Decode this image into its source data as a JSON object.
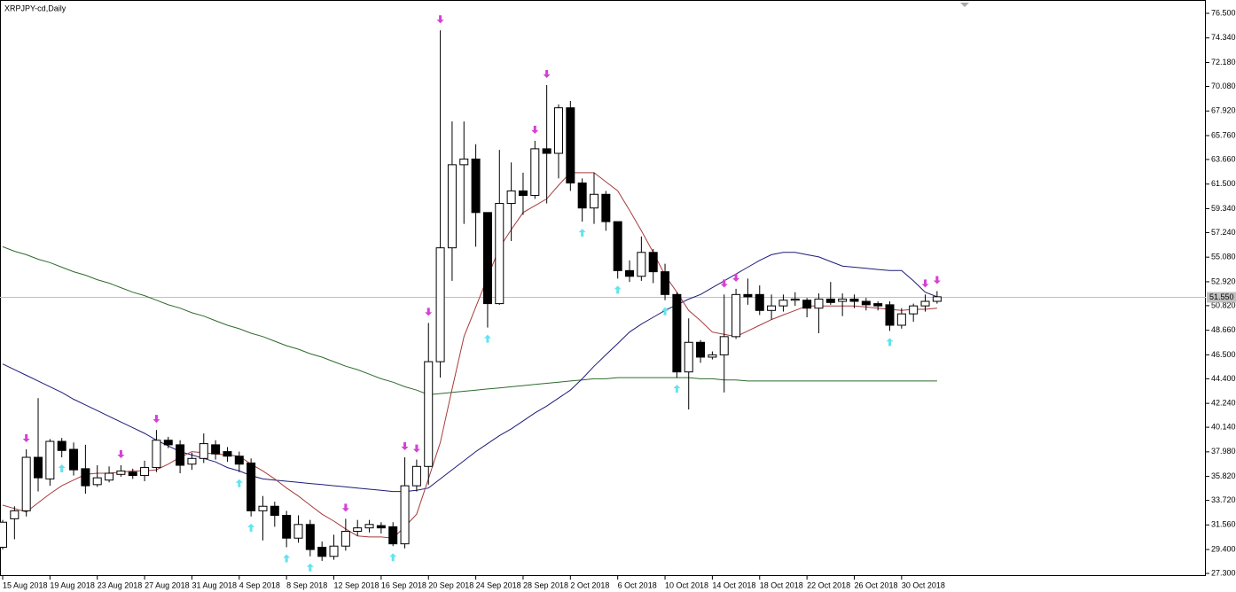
{
  "chart_data": {
    "type": "candlestick",
    "title": "XRPJPY-cd,Daily",
    "categories": [
      "15 Aug 2018",
      null,
      null,
      null,
      "19 Aug 2018",
      null,
      null,
      null,
      "23 Aug 2018",
      null,
      null,
      null,
      "27 Aug 2018",
      null,
      null,
      null,
      "31 Aug 2018",
      null,
      null,
      null,
      "4 Sep 2018",
      null,
      null,
      null,
      "8 Sep 2018",
      null,
      null,
      null,
      "12 Sep 2018",
      null,
      null,
      null,
      "16 Sep 2018",
      null,
      null,
      null,
      "20 Sep 2018",
      null,
      null,
      null,
      "24 Sep 2018",
      null,
      null,
      null,
      "28 Sep 2018",
      null,
      null,
      null,
      "2 Oct 2018",
      null,
      null,
      null,
      "6 Oct 2018",
      null,
      null,
      null,
      "10 Oct 2018",
      null,
      null,
      null,
      "14 Oct 2018",
      null,
      null,
      null,
      "18 Oct 2018",
      null,
      null,
      null,
      "22 Oct 2018",
      null,
      null,
      null,
      "26 Oct 2018",
      null,
      null,
      null,
      "30 Oct 2018",
      null,
      null,
      null
    ],
    "open": [
      29.6,
      32.1,
      32.8,
      37.5,
      35.6,
      38.9,
      38.2,
      36.5,
      35.1,
      35.5,
      36.0,
      36.2,
      35.9,
      36.6,
      39.0,
      38.6,
      36.9,
      37.4,
      38.6,
      38.0,
      37.6,
      37.0,
      32.8,
      33.2,
      32.4,
      30.4,
      31.6,
      29.6,
      28.8,
      29.7,
      31.0,
      31.3,
      31.5,
      31.4,
      29.9,
      35.0,
      36.7,
      45.9,
      55.9,
      63.2,
      63.7,
      59.0,
      51.0,
      59.8,
      60.9,
      60.5,
      64.6,
      64.2,
      68.2,
      61.6,
      59.4,
      60.6,
      58.2,
      53.9,
      53.4,
      55.5,
      53.8,
      51.8,
      45.0,
      47.6,
      46.3,
      46.5,
      48.1,
      51.8,
      51.8,
      50.4,
      50.8,
      51.3,
      51.3,
      50.6,
      51.4,
      51.2,
      51.4,
      51.2,
      51.0,
      50.9,
      49.1,
      50.1,
      50.8,
      51.2
    ],
    "high": [
      32.0,
      33.2,
      38.2,
      42.7,
      39.1,
      39.2,
      38.8,
      38.6,
      36.8,
      36.7,
      36.8,
      36.5,
      37.2,
      39.9,
      39.3,
      39.0,
      37.9,
      39.6,
      39.0,
      38.4,
      38.0,
      37.4,
      34.1,
      33.6,
      32.8,
      32.4,
      32.0,
      30.1,
      30.7,
      32.1,
      32.0,
      32.0,
      31.8,
      31.8,
      37.5,
      37.3,
      49.3,
      75.0,
      67.0,
      67.0,
      65.0,
      59.0,
      64.5,
      63.4,
      62.5,
      65.3,
      70.2,
      68.5,
      68.8,
      62.0,
      62.5,
      60.9,
      58.2,
      54.8,
      56.9,
      55.8,
      54.5,
      52.0,
      49.7,
      47.8,
      46.8,
      51.8,
      52.3,
      53.2,
      52.6,
      51.8,
      51.8,
      52.0,
      51.5,
      51.9,
      52.9,
      51.9,
      51.8,
      51.5,
      51.2,
      51.2,
      50.6,
      51.0,
      51.8,
      52.1
    ],
    "low": [
      29.4,
      30.3,
      32.3,
      34.5,
      35.0,
      37.5,
      35.9,
      34.3,
      34.9,
      35.3,
      35.8,
      35.6,
      35.4,
      36.2,
      38.3,
      36.1,
      36.4,
      37.0,
      37.3,
      37.1,
      36.2,
      32.3,
      30.2,
      31.4,
      29.6,
      30.0,
      28.8,
      28.4,
      28.5,
      29.3,
      30.6,
      30.9,
      30.8,
      29.7,
      29.5,
      34.5,
      35.1,
      44.5,
      53.0,
      58.0,
      56.0,
      48.9,
      50.9,
      56.5,
      58.8,
      60.2,
      59.8,
      62.0,
      60.9,
      58.2,
      58.0,
      57.4,
      53.2,
      52.9,
      53.0,
      52.8,
      51.3,
      44.5,
      41.7,
      45.8,
      46.1,
      43.2,
      47.9,
      50.9,
      50.0,
      49.6,
      50.3,
      50.8,
      49.8,
      48.4,
      50.9,
      49.9,
      50.6,
      50.4,
      50.4,
      48.6,
      48.8,
      49.4,
      50.3,
      51.0
    ],
    "close": [
      31.8,
      32.8,
      37.5,
      35.7,
      38.9,
      38.1,
      36.4,
      35.0,
      35.7,
      36.1,
      36.3,
      35.9,
      36.6,
      39.0,
      38.6,
      36.8,
      37.4,
      38.7,
      37.8,
      37.6,
      36.9,
      32.8,
      33.2,
      32.4,
      30.4,
      31.6,
      29.4,
      28.8,
      29.7,
      31.0,
      31.3,
      31.6,
      31.3,
      29.9,
      35.0,
      36.7,
      45.9,
      55.9,
      63.2,
      63.7,
      59.0,
      51.0,
      59.8,
      60.9,
      60.5,
      64.6,
      64.2,
      68.2,
      61.6,
      59.4,
      60.6,
      58.2,
      53.9,
      53.4,
      55.5,
      53.8,
      51.8,
      45.0,
      47.6,
      46.3,
      46.5,
      48.1,
      51.8,
      51.6,
      50.4,
      50.8,
      51.3,
      51.4,
      50.6,
      51.4,
      51.1,
      51.4,
      51.2,
      50.9,
      50.8,
      49.1,
      50.1,
      50.8,
      51.2,
      51.6
    ],
    "lines": [
      {
        "color": "#2e6b2e",
        "values": [
          56.0,
          55.6,
          55.3,
          54.9,
          54.6,
          54.2,
          53.8,
          53.5,
          53.1,
          52.8,
          52.4,
          52.0,
          51.7,
          51.3,
          50.9,
          50.6,
          50.2,
          49.9,
          49.5,
          49.1,
          48.8,
          48.4,
          48.1,
          47.7,
          47.3,
          47.0,
          46.6,
          46.3,
          45.9,
          45.5,
          45.2,
          44.8,
          44.4,
          44.1,
          43.7,
          43.4,
          43.0,
          43.1,
          43.2,
          43.3,
          43.4,
          43.5,
          43.6,
          43.7,
          43.8,
          43.9,
          44.0,
          44.1,
          44.2,
          44.3,
          44.4,
          44.4,
          44.5,
          44.5,
          44.5,
          44.5,
          44.5,
          44.5,
          44.5,
          44.4,
          44.4,
          44.3,
          44.3,
          44.2,
          44.2,
          44.2,
          44.2,
          44.2,
          44.2,
          44.2,
          44.2,
          44.2,
          44.2,
          44.2,
          44.2,
          44.2,
          44.2,
          44.2,
          44.2,
          44.2
        ]
      },
      {
        "color": "#1c1c78",
        "values": [
          45.7,
          45.2,
          44.7,
          44.2,
          43.7,
          43.2,
          42.6,
          42.1,
          41.6,
          41.1,
          40.6,
          40.1,
          39.6,
          39.0,
          38.5,
          38.0,
          37.7,
          37.4,
          37.1,
          36.6,
          36.3,
          35.9,
          35.6,
          35.5,
          35.4,
          35.3,
          35.2,
          35.1,
          35.0,
          34.9,
          34.8,
          34.7,
          34.6,
          34.5,
          34.5,
          34.6,
          34.8,
          35.6,
          36.4,
          37.2,
          38.0,
          38.7,
          39.4,
          40.0,
          40.7,
          41.4,
          42.0,
          42.7,
          43.4,
          44.4,
          45.5,
          46.5,
          47.5,
          48.5,
          49.2,
          49.8,
          50.4,
          50.9,
          51.4,
          51.8,
          52.4,
          53.0,
          53.6,
          54.2,
          54.8,
          55.3,
          55.5,
          55.5,
          55.3,
          55.1,
          54.7,
          54.3,
          54.2,
          54.1,
          54.0,
          53.9,
          53.9,
          53.0,
          52.0,
          51.6
        ]
      },
      {
        "color": "#a83a3a",
        "values": [
          33.3,
          33.0,
          32.7,
          33.5,
          34.3,
          35.0,
          35.5,
          36.0,
          36.1,
          36.1,
          36.2,
          36.3,
          36.3,
          36.4,
          36.9,
          37.5,
          38.0,
          37.9,
          37.8,
          37.7,
          37.6,
          36.9,
          36.3,
          35.6,
          34.8,
          34.1,
          33.3,
          32.5,
          31.9,
          31.2,
          30.6,
          30.5,
          30.5,
          30.4,
          31.4,
          32.5,
          35.6,
          38.8,
          43.5,
          48.1,
          50.7,
          53.3,
          55.9,
          57.5,
          59.0,
          59.6,
          60.2,
          61.4,
          62.5,
          62.5,
          62.5,
          61.7,
          60.9,
          59.2,
          57.4,
          55.5,
          53.5,
          52.0,
          50.4,
          49.5,
          48.5,
          48.3,
          48.1,
          48.6,
          49.1,
          49.6,
          50.0,
          50.4,
          50.8,
          50.8,
          50.8,
          50.8,
          50.8,
          50.7,
          50.6,
          50.5,
          50.4,
          50.5,
          50.5,
          50.6
        ]
      }
    ],
    "signals_down": [
      2,
      10,
      13,
      29,
      34,
      35,
      36,
      37,
      45,
      46,
      61,
      62,
      78,
      79
    ],
    "signals_up": [
      5,
      20,
      21,
      24,
      26,
      33,
      41,
      49,
      52,
      56,
      57,
      75
    ],
    "down_color": "#d63fd6",
    "up_color": "#63e3ee",
    "ylim": [
      27.07,
      77.28
    ],
    "yticks": [
      {
        "value": 76.5,
        "label": "76.500"
      },
      {
        "value": 74.34,
        "label": "74.340"
      },
      {
        "value": 72.18,
        "label": "72.180"
      },
      {
        "value": 70.08,
        "label": "70.080"
      },
      {
        "value": 67.92,
        "label": "67.920"
      },
      {
        "value": 65.76,
        "label": "65.760"
      },
      {
        "value": 63.66,
        "label": "63.660"
      },
      {
        "value": 61.5,
        "label": "61.500"
      },
      {
        "value": 59.34,
        "label": "59.340"
      },
      {
        "value": 57.24,
        "label": "57.240"
      },
      {
        "value": 55.08,
        "label": "55.080"
      },
      {
        "value": 52.92,
        "label": "52.920"
      },
      {
        "value": 50.82,
        "label": "50.820"
      },
      {
        "value": 48.66,
        "label": "48.660"
      },
      {
        "value": 46.5,
        "label": "46.500"
      },
      {
        "value": 44.4,
        "label": "44.400"
      },
      {
        "value": 42.24,
        "label": "42.240"
      },
      {
        "value": 40.14,
        "label": "40.140"
      },
      {
        "value": 37.98,
        "label": "37.980"
      },
      {
        "value": 35.82,
        "label": "35.820"
      },
      {
        "value": 33.72,
        "label": "33.720"
      },
      {
        "value": 31.56,
        "label": "31.560"
      },
      {
        "value": 29.4,
        "label": "29.400"
      },
      {
        "value": 27.3,
        "label": "27.300"
      }
    ],
    "current_price": {
      "value": 51.55,
      "label": "51.550"
    }
  }
}
